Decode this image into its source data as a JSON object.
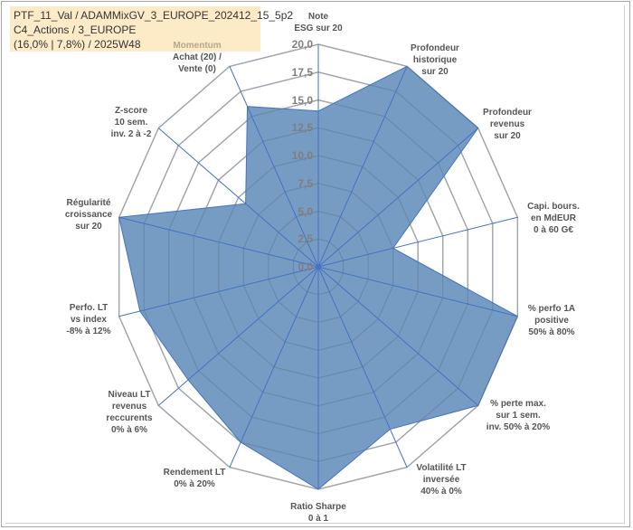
{
  "title": {
    "line1": "PTF_11_Val / ADAMMixGV_3_EUROPE_202412_15_5p2",
    "line2": "C4_Actions / 3_EUROPE",
    "line3": "(16,0% | 7,8%) / 2025W48"
  },
  "colors": {
    "fill": "#6f97c0",
    "axis": "#4472c4",
    "grid": "#bfbfbf"
  },
  "chart_data": {
    "type": "radar",
    "title": "PTF_11_Val / ADAMMixGV_3_EUROPE_202412_15_5p2",
    "rlim": [
      0,
      20
    ],
    "tick_labels": [
      "0,0",
      "2,5",
      "5,0",
      "7,5",
      "10,0",
      "12,5",
      "15,0",
      "17,5",
      "20,0"
    ],
    "categories": [
      "Note\nESG sur 20",
      "Profondeur\nhistorique\nsur 20",
      "Profondeur\nrevenus\nsur 20",
      "Capi. bours.\nen MdEUR\n0 à 60 G€",
      "% perfo 1A\npositive\n50% à 80%",
      "% perte max.\nsur 1 sem.\ninv. 50% à 20%",
      "Volatilité LT\ninversée\n40% à 0%",
      "Ratio Sharpe\n0 à 1",
      "Rendement LT\n0% à 20%",
      "Niveau LT\nrevenus\nreccurents\n0% à 6%",
      "Perfo. LT\nvs index\n-8% à 12%",
      "Régularité\ncroissance\nsur 20",
      "Z-score\n10 sem.\ninv. 2 à -2",
      "Achat (20) /\nVente (0)"
    ],
    "momentum_header": "Momentum",
    "series": [
      {
        "name": "PTF_11_Val",
        "values": [
          14,
          20,
          20,
          7.5,
          20,
          20,
          16.2,
          20,
          17.5,
          16.3,
          17.9,
          20,
          9.1,
          16
        ]
      }
    ],
    "grid": true,
    "legend": "none"
  }
}
